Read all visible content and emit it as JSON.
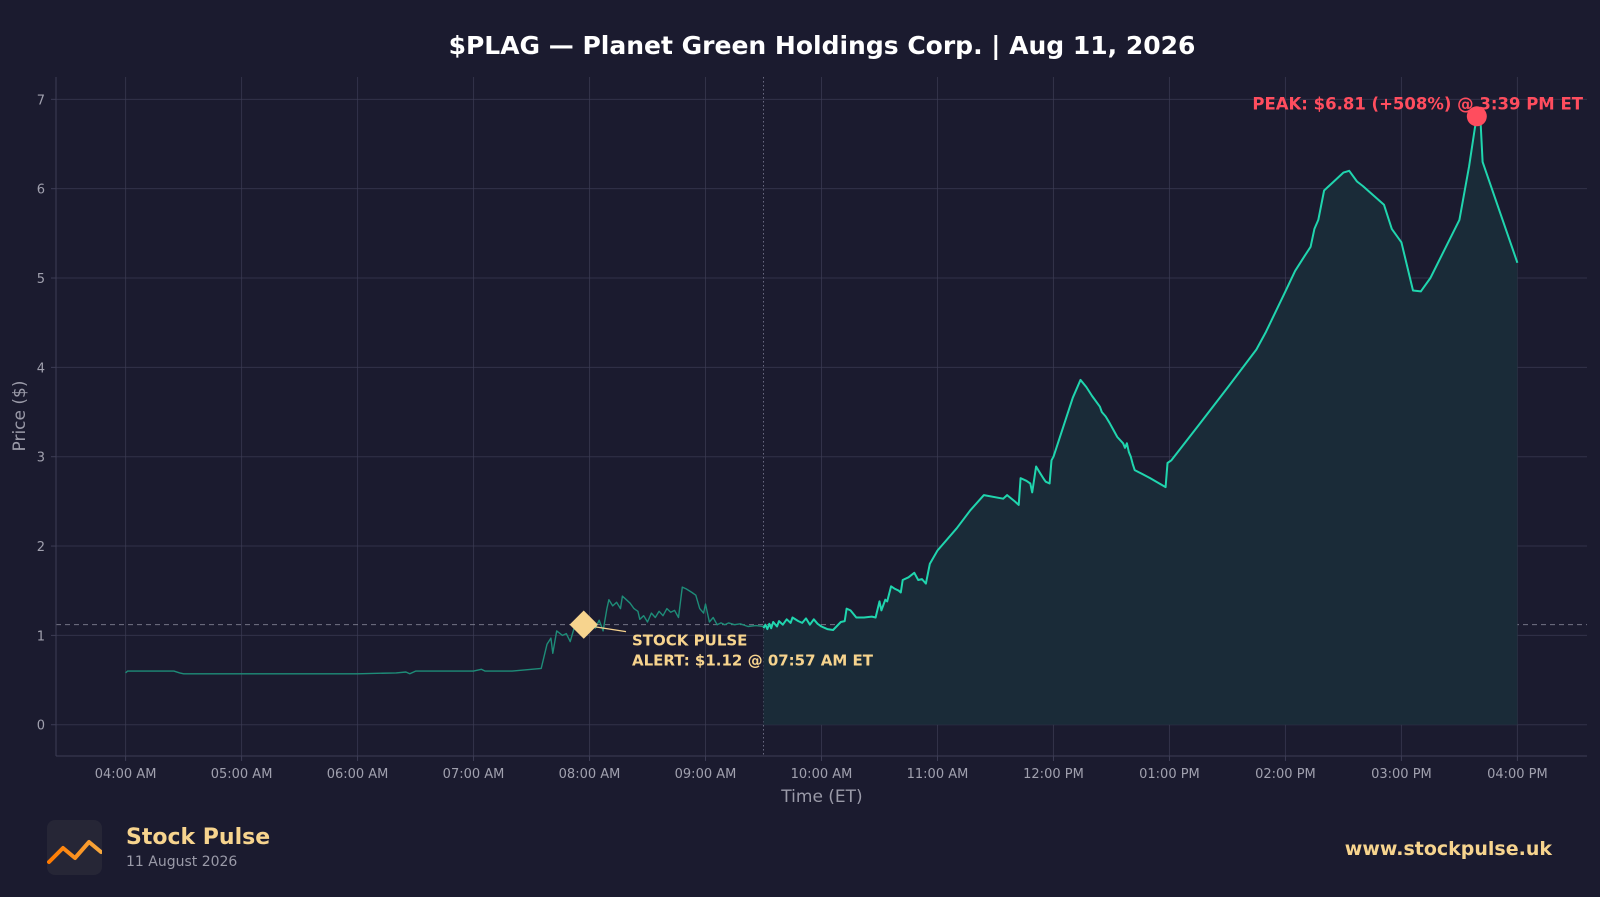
{
  "colors": {
    "background": "#1b1b2f",
    "grid": "#3d3d55",
    "axis_text": "#a0a0ae",
    "premarket_line": "#1e8c78",
    "market_line": "#20d5ae",
    "fill": "#1a2b38",
    "alert": "#f7d48e",
    "peak": "#ff4d5e",
    "title": "#ffffff"
  },
  "chart_data": {
    "type": "line",
    "title": "$PLAG — Planet Green Holdings Corp.  |  Aug 11, 2026",
    "xlabel": "Time (ET)",
    "ylabel": "Price ($)",
    "x_ticks": [
      "04:00 AM",
      "05:00 AM",
      "06:00 AM",
      "07:00 AM",
      "08:00 AM",
      "09:00 AM",
      "10:00 AM",
      "11:00 AM",
      "12:00 PM",
      "01:00 PM",
      "02:00 PM",
      "03:00 PM",
      "04:00 PM"
    ],
    "x_tick_hours": [
      4,
      5,
      6,
      7,
      8,
      9,
      10,
      11,
      12,
      13,
      14,
      15,
      16
    ],
    "y_ticks": [
      0,
      1,
      2,
      3,
      4,
      5,
      6,
      7
    ],
    "xlim": [
      "03:24 AM",
      "04:36 PM"
    ],
    "ylim": [
      -0.35,
      7.25
    ],
    "grid": true,
    "market_open": "09:30 AM",
    "series": [
      {
        "session": "premarket",
        "points": [
          [
            "04:00",
            0.58
          ],
          [
            "04:01",
            0.6
          ],
          [
            "04:25",
            0.6
          ],
          [
            "04:28",
            0.58
          ],
          [
            "04:30",
            0.57
          ],
          [
            "05:00",
            0.57
          ],
          [
            "05:30",
            0.57
          ],
          [
            "06:00",
            0.57
          ],
          [
            "06:20",
            0.58
          ],
          [
            "06:25",
            0.59
          ],
          [
            "06:27",
            0.57
          ],
          [
            "06:30",
            0.6
          ],
          [
            "07:00",
            0.6
          ],
          [
            "07:04",
            0.62
          ],
          [
            "07:06",
            0.6
          ],
          [
            "07:20",
            0.6
          ],
          [
            "07:30",
            0.62
          ],
          [
            "07:35",
            0.63
          ],
          [
            "07:38",
            0.9
          ],
          [
            "07:40",
            0.97
          ],
          [
            "07:41",
            0.8
          ],
          [
            "07:43",
            1.05
          ],
          [
            "07:46",
            1.0
          ],
          [
            "07:48",
            1.02
          ],
          [
            "07:50",
            0.93
          ],
          [
            "07:52",
            1.08
          ],
          [
            "07:55",
            1.05
          ],
          [
            "07:57",
            1.12
          ],
          [
            "08:00",
            1.15
          ],
          [
            "08:03",
            1.08
          ],
          [
            "08:05",
            1.17
          ],
          [
            "08:07",
            1.05
          ],
          [
            "08:09",
            1.3
          ],
          [
            "08:10",
            1.4
          ],
          [
            "08:12",
            1.33
          ],
          [
            "08:14",
            1.37
          ],
          [
            "08:16",
            1.3
          ],
          [
            "08:17",
            1.44
          ],
          [
            "08:19",
            1.4
          ],
          [
            "08:21",
            1.36
          ],
          [
            "08:23",
            1.3
          ],
          [
            "08:25",
            1.27
          ],
          [
            "08:26",
            1.18
          ],
          [
            "08:28",
            1.22
          ],
          [
            "08:30",
            1.15
          ],
          [
            "08:32",
            1.25
          ],
          [
            "08:34",
            1.2
          ],
          [
            "08:36",
            1.27
          ],
          [
            "08:38",
            1.22
          ],
          [
            "08:40",
            1.3
          ],
          [
            "08:42",
            1.26
          ],
          [
            "08:44",
            1.28
          ],
          [
            "08:46",
            1.2
          ],
          [
            "08:48",
            1.54
          ],
          [
            "08:50",
            1.52
          ],
          [
            "08:53",
            1.48
          ],
          [
            "08:55",
            1.45
          ],
          [
            "08:57",
            1.3
          ],
          [
            "08:59",
            1.25
          ],
          [
            "09:00",
            1.35
          ],
          [
            "09:02",
            1.15
          ],
          [
            "09:04",
            1.2
          ],
          [
            "09:06",
            1.12
          ],
          [
            "09:08",
            1.14
          ],
          [
            "09:10",
            1.12
          ],
          [
            "09:12",
            1.14
          ],
          [
            "09:15",
            1.12
          ],
          [
            "09:18",
            1.13
          ],
          [
            "09:22",
            1.1
          ],
          [
            "09:26",
            1.11
          ],
          [
            "09:30",
            1.1
          ]
        ]
      },
      {
        "session": "market",
        "points": [
          [
            "09:30",
            1.08
          ],
          [
            "09:31",
            1.12
          ],
          [
            "09:32",
            1.07
          ],
          [
            "09:33",
            1.13
          ],
          [
            "09:34",
            1.08
          ],
          [
            "09:35",
            1.15
          ],
          [
            "09:37",
            1.1
          ],
          [
            "09:38",
            1.16
          ],
          [
            "09:40",
            1.12
          ],
          [
            "09:42",
            1.18
          ],
          [
            "09:44",
            1.14
          ],
          [
            "09:45",
            1.2
          ],
          [
            "09:48",
            1.16
          ],
          [
            "09:50",
            1.14
          ],
          [
            "09:52",
            1.19
          ],
          [
            "09:54",
            1.12
          ],
          [
            "09:56",
            1.18
          ],
          [
            "09:58",
            1.13
          ],
          [
            "10:00",
            1.1
          ],
          [
            "10:03",
            1.07
          ],
          [
            "10:06",
            1.06
          ],
          [
            "10:10",
            1.15
          ],
          [
            "10:12",
            1.16
          ],
          [
            "10:13",
            1.3
          ],
          [
            "10:15",
            1.28
          ],
          [
            "10:18",
            1.2
          ],
          [
            "10:22",
            1.2
          ],
          [
            "10:26",
            1.21
          ],
          [
            "10:28",
            1.2
          ],
          [
            "10:30",
            1.38
          ],
          [
            "10:31",
            1.28
          ],
          [
            "10:33",
            1.4
          ],
          [
            "10:34",
            1.38
          ],
          [
            "10:36",
            1.55
          ],
          [
            "10:38",
            1.52
          ],
          [
            "10:40",
            1.5
          ],
          [
            "10:41",
            1.48
          ],
          [
            "10:42",
            1.62
          ],
          [
            "10:45",
            1.65
          ],
          [
            "10:48",
            1.7
          ],
          [
            "10:50",
            1.62
          ],
          [
            "10:52",
            1.63
          ],
          [
            "10:54",
            1.58
          ],
          [
            "10:56",
            1.8
          ],
          [
            "11:00",
            1.95
          ],
          [
            "11:02",
            2.0
          ],
          [
            "11:10",
            2.2
          ],
          [
            "11:17",
            2.4
          ],
          [
            "11:24",
            2.57
          ],
          [
            "11:34",
            2.53
          ],
          [
            "11:36",
            2.57
          ],
          [
            "11:40",
            2.5
          ],
          [
            "11:42",
            2.46
          ],
          [
            "11:43",
            2.76
          ],
          [
            "11:46",
            2.73
          ],
          [
            "11:48",
            2.7
          ],
          [
            "11:49",
            2.6
          ],
          [
            "11:51",
            2.89
          ],
          [
            "11:53",
            2.82
          ],
          [
            "11:55",
            2.75
          ],
          [
            "11:56",
            2.72
          ],
          [
            "11:58",
            2.7
          ],
          [
            "11:59",
            2.96
          ],
          [
            "12:00",
            3.0
          ],
          [
            "12:10",
            3.66
          ],
          [
            "12:14",
            3.86
          ],
          [
            "12:17",
            3.78
          ],
          [
            "12:20",
            3.68
          ],
          [
            "12:24",
            3.56
          ],
          [
            "12:25",
            3.5
          ],
          [
            "12:27",
            3.45
          ],
          [
            "12:29",
            3.38
          ],
          [
            "12:31",
            3.3
          ],
          [
            "12:33",
            3.22
          ],
          [
            "12:36",
            3.15
          ],
          [
            "12:37",
            3.1
          ],
          [
            "12:38",
            3.15
          ],
          [
            "12:39",
            3.05
          ],
          [
            "12:40",
            3.0
          ],
          [
            "12:41",
            2.92
          ],
          [
            "12:42",
            2.85
          ],
          [
            "12:50",
            2.76
          ],
          [
            "12:58",
            2.66
          ],
          [
            "12:59",
            2.93
          ],
          [
            "13:01",
            2.96
          ],
          [
            "13:15",
            3.35
          ],
          [
            "13:30",
            3.77
          ],
          [
            "13:45",
            4.2
          ],
          [
            "13:50",
            4.4
          ],
          [
            "14:00",
            4.85
          ],
          [
            "14:05",
            5.08
          ],
          [
            "14:10",
            5.25
          ],
          [
            "14:13",
            5.35
          ],
          [
            "14:15",
            5.55
          ],
          [
            "14:17",
            5.65
          ],
          [
            "14:20",
            5.98
          ],
          [
            "14:30",
            6.18
          ],
          [
            "14:33",
            6.2
          ],
          [
            "14:37",
            6.08
          ],
          [
            "14:40",
            6.03
          ],
          [
            "14:51",
            5.82
          ],
          [
            "14:55",
            5.55
          ],
          [
            "15:00",
            5.4
          ],
          [
            "15:06",
            4.86
          ],
          [
            "15:10",
            4.85
          ],
          [
            "15:15",
            5.0
          ],
          [
            "15:30",
            5.65
          ],
          [
            "15:35",
            6.25
          ],
          [
            "15:38",
            6.68
          ],
          [
            "15:39",
            6.81
          ],
          [
            "15:41",
            6.72
          ],
          [
            "15:42",
            6.3
          ],
          [
            "16:00",
            5.17
          ]
        ]
      }
    ],
    "alert_line": 1.12,
    "annotations": {
      "alert": {
        "time": "07:57",
        "price": 1.12,
        "lines": [
          "STOCK PULSE",
          "ALERT: $1.12 @ 07:57 AM ET"
        ]
      },
      "peak": {
        "time": "15:39",
        "price": 6.81,
        "label": "PEAK: $6.81 (+508%) @ 3:39 PM ET"
      }
    }
  },
  "footer": {
    "brand_name": "Stock Pulse",
    "brand_date": "11 August 2026",
    "website": "www.stockpulse.uk"
  },
  "icons": {
    "logo": "trend-line-icon"
  }
}
